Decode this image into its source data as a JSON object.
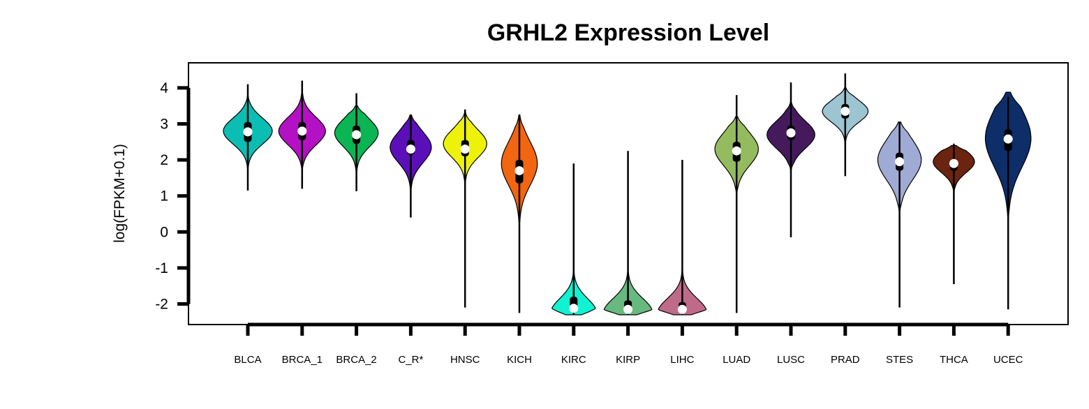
{
  "chart_data": {
    "type": "violin",
    "title": "GRHL2 Expression Level",
    "xlabel": "",
    "ylabel": "log(FPKM+0.1)",
    "ylim": [
      -2.6,
      4.7
    ],
    "yticks": [
      -2,
      -1,
      0,
      1,
      2,
      3,
      4
    ],
    "grid": false,
    "legend": "none",
    "categories": [
      "BLCA",
      "BRCA_1",
      "BRCA_2",
      "C_R*",
      "HNSC",
      "KICH",
      "KIRC",
      "KIRP",
      "LIHC",
      "LUAD",
      "LUSC",
      "PRAD",
      "STES",
      "THCA",
      "UCEC"
    ],
    "series": [
      {
        "category": "BLCA",
        "color": "#0CBDB4",
        "min": 1.15,
        "max": 4.1,
        "q1": 2.5,
        "median": 2.78,
        "q3": 3.05,
        "vmin": 1.6,
        "vmax": 3.85,
        "mode": 2.8,
        "spread": 0.36,
        "maxw": 0.45
      },
      {
        "category": "BRCA_1",
        "color": "#B411C4",
        "min": 1.2,
        "max": 4.2,
        "q1": 2.55,
        "median": 2.8,
        "q3": 3.05,
        "vmin": 1.6,
        "vmax": 4.2,
        "mode": 2.8,
        "spread": 0.38,
        "maxw": 0.43
      },
      {
        "category": "BRCA_2",
        "color": "#0BB554",
        "min": 1.13,
        "max": 3.85,
        "q1": 2.45,
        "median": 2.7,
        "q3": 2.95,
        "vmin": 1.5,
        "vmax": 3.5,
        "mode": 2.75,
        "spread": 0.38,
        "maxw": 0.4
      },
      {
        "category": "C_R*",
        "color": "#5B0FB8",
        "min": 0.4,
        "max": 3.25,
        "q1": 2.15,
        "median": 2.3,
        "q3": 2.55,
        "vmin": 1.0,
        "vmax": 3.25,
        "mode": 2.35,
        "spread": 0.42,
        "maxw": 0.38
      },
      {
        "category": "HNSC",
        "color": "#EEF20B",
        "min": -2.1,
        "max": 3.4,
        "q1": 2.1,
        "median": 2.3,
        "q3": 2.55,
        "vmin": 1.1,
        "vmax": 3.3,
        "mode": 2.45,
        "spread": 0.38,
        "maxw": 0.4
      },
      {
        "category": "KICH",
        "color": "#F26511",
        "min": -2.25,
        "max": 3.25,
        "q1": 1.35,
        "median": 1.7,
        "q3": 2.0,
        "vmin": -0.05,
        "vmax": 3.25,
        "mode": 1.9,
        "spread": 0.6,
        "maxw": 0.33
      },
      {
        "category": "KIRC",
        "color": "#10F2D2",
        "min": -2.3,
        "max": 1.9,
        "q1": -2.2,
        "median": -2.12,
        "q3": -1.8,
        "vmin": -2.3,
        "vmax": -0.7,
        "mode": -2.25,
        "spread": 0.4,
        "maxw": 0.4
      },
      {
        "category": "KIRP",
        "color": "#68B97F",
        "min": -2.3,
        "max": 2.25,
        "q1": -2.2,
        "median": -2.15,
        "q3": -1.9,
        "vmin": -2.3,
        "vmax": -1.0,
        "mode": -2.25,
        "spread": 0.4,
        "maxw": 0.44
      },
      {
        "category": "LIHC",
        "color": "#C06A8A",
        "min": -2.3,
        "max": 2.0,
        "q1": -2.2,
        "median": -2.15,
        "q3": -1.95,
        "vmin": -2.3,
        "vmax": -1.0,
        "mode": -2.25,
        "spread": 0.4,
        "maxw": 0.44
      },
      {
        "category": "LUAD",
        "color": "#94BB5E",
        "min": -2.25,
        "max": 3.8,
        "q1": 1.95,
        "median": 2.25,
        "q3": 2.5,
        "vmin": 1.0,
        "vmax": 3.2,
        "mode": 2.3,
        "spread": 0.45,
        "maxw": 0.4
      },
      {
        "category": "LUSC",
        "color": "#451A5D",
        "min": -0.15,
        "max": 4.15,
        "q1": 2.55,
        "median": 2.75,
        "q3": 2.95,
        "vmin": 1.7,
        "vmax": 3.6,
        "mode": 2.7,
        "spread": 0.38,
        "maxw": 0.44
      },
      {
        "category": "PRAD",
        "color": "#9CC4D1",
        "min": 1.55,
        "max": 4.4,
        "q1": 3.15,
        "median": 3.35,
        "q3": 3.55,
        "vmin": 2.0,
        "vmax": 4.0,
        "mode": 3.35,
        "spread": 0.3,
        "maxw": 0.42
      },
      {
        "category": "STES",
        "color": "#9FABD4",
        "min": -2.1,
        "max": 3.05,
        "q1": 1.7,
        "median": 1.95,
        "q3": 2.2,
        "vmin": 0.5,
        "vmax": 3.05,
        "mode": 2.0,
        "spread": 0.55,
        "maxw": 0.4
      },
      {
        "category": "THCA",
        "color": "#6B2410",
        "min": -1.45,
        "max": 2.45,
        "q1": 1.7,
        "median": 1.9,
        "q3": 2.0,
        "vmin": 1.1,
        "vmax": 2.4,
        "mode": 1.95,
        "spread": 0.3,
        "maxw": 0.38
      },
      {
        "category": "UCEC",
        "color": "#0E2E6A",
        "min": -2.15,
        "max": 3.75,
        "q1": 2.25,
        "median": 2.58,
        "q3": 2.85,
        "vmin": 0.2,
        "vmax": 3.88,
        "mode": 2.6,
        "spread": 0.8,
        "maxw": 0.42
      }
    ]
  }
}
